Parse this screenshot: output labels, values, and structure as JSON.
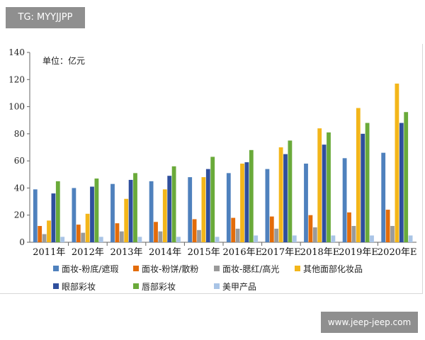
{
  "watermark_top": "TG: MYYJJPP",
  "watermark_bottom": "www.jeep-jeep.com",
  "chart_data": {
    "type": "bar",
    "unit_label": "单位：亿元",
    "ylim": [
      0,
      140
    ],
    "yticks": [
      0,
      20,
      40,
      60,
      80,
      100,
      120,
      140
    ],
    "grid": false,
    "legend_position": "bottom",
    "categories": [
      "2011年",
      "2012年",
      "2013年",
      "2014年",
      "2015年",
      "2016年E",
      "2017年E",
      "2018年E",
      "2019年E",
      "2020年E"
    ],
    "series": [
      {
        "name": "面妆-粉底/遮瑕",
        "color": "#4f81bd",
        "values": [
          39,
          40,
          43,
          45,
          48,
          51,
          54,
          58,
          62,
          66
        ]
      },
      {
        "name": "面妆-粉饼/散粉",
        "color": "#e36c0a",
        "values": [
          12,
          13,
          14,
          15,
          17,
          18,
          19,
          20,
          22,
          24
        ]
      },
      {
        "name": "面妆-腮红/高光",
        "color": "#9a9a9a",
        "values": [
          6,
          7,
          8,
          8,
          9,
          10,
          10,
          11,
          12,
          12
        ]
      },
      {
        "name": "其他面部化妆品",
        "color": "#f3b61a",
        "values": [
          16,
          21,
          32,
          39,
          48,
          58,
          70,
          84,
          99,
          117
        ]
      },
      {
        "name": "眼部彩妆",
        "color": "#2f4f9d",
        "values": [
          36,
          41,
          46,
          49,
          54,
          59,
          65,
          72,
          80,
          88
        ]
      },
      {
        "name": "唇部彩妆",
        "color": "#6aaa3a",
        "values": [
          45,
          47,
          51,
          56,
          63,
          68,
          75,
          81,
          88,
          96
        ]
      },
      {
        "name": "美甲产品",
        "color": "#a9c4e6",
        "values": [
          4,
          4,
          4,
          4,
          4,
          5,
          5,
          5,
          5,
          5
        ]
      }
    ]
  }
}
